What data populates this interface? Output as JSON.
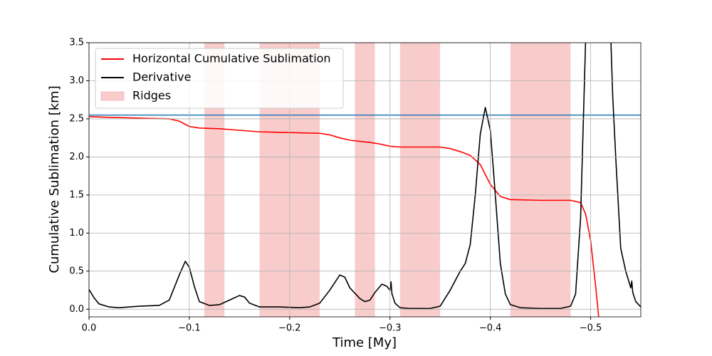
{
  "chart_data": {
    "type": "line",
    "xlabel": "Time [My]",
    "ylabel": "Cumulative Sublimation [km]",
    "xlim": [
      0,
      -0.55
    ],
    "ylim": [
      -0.1,
      3.5
    ],
    "xticks": [
      {
        "value": 0,
        "label": "0.0"
      },
      {
        "value": -0.1,
        "label": "−0.1"
      },
      {
        "value": -0.2,
        "label": "−0.2"
      },
      {
        "value": -0.3,
        "label": "−0.3"
      },
      {
        "value": -0.4,
        "label": "−0.4"
      },
      {
        "value": -0.5,
        "label": "−0.5"
      }
    ],
    "yticks": [
      {
        "value": 0,
        "label": "0.0"
      },
      0.5,
      {
        "value": 1,
        "label": "1.0"
      },
      1.5,
      {
        "value": 2,
        "label": "2.0"
      },
      2.5,
      {
        "value": 3,
        "label": "3.0"
      },
      3.5
    ],
    "grid": true,
    "legend": "upper left",
    "hline": {
      "value": 2.55,
      "color": "#1f77b4"
    },
    "spans": {
      "name": "Ridges",
      "color": "#f08080",
      "ranges": [
        [
          -0.115,
          -0.135
        ],
        [
          -0.17,
          -0.23
        ],
        [
          -0.265,
          -0.285
        ],
        [
          -0.31,
          -0.35
        ],
        [
          -0.42,
          -0.48
        ]
      ]
    },
    "series": [
      {
        "name": "Horizontal Cumulative Sublimation",
        "color": "#ff0000",
        "x": [
          0,
          -0.02,
          -0.05,
          -0.08,
          -0.09,
          -0.1,
          -0.11,
          -0.13,
          -0.15,
          -0.17,
          -0.2,
          -0.23,
          -0.24,
          -0.25,
          -0.26,
          -0.28,
          -0.29,
          -0.3,
          -0.31,
          -0.35,
          -0.36,
          -0.37,
          -0.38,
          -0.39,
          -0.4,
          -0.41,
          -0.42,
          -0.45,
          -0.48,
          -0.49,
          -0.495,
          -0.5,
          -0.505,
          -0.508
        ],
        "values": [
          2.53,
          2.52,
          2.51,
          2.5,
          2.47,
          2.4,
          2.38,
          2.37,
          2.35,
          2.33,
          2.32,
          2.31,
          2.29,
          2.25,
          2.22,
          2.19,
          2.17,
          2.14,
          2.13,
          2.13,
          2.11,
          2.07,
          2.02,
          1.9,
          1.64,
          1.48,
          1.44,
          1.43,
          1.43,
          1.4,
          1.25,
          0.9,
          0.3,
          -0.1
        ]
      },
      {
        "name": "Derivative",
        "color": "#000000",
        "x": [
          0,
          -0.005,
          -0.01,
          -0.02,
          -0.03,
          -0.05,
          -0.07,
          -0.08,
          -0.09,
          -0.096,
          -0.1,
          -0.105,
          -0.11,
          -0.12,
          -0.13,
          -0.14,
          -0.15,
          -0.155,
          -0.16,
          -0.17,
          -0.19,
          -0.21,
          -0.22,
          -0.23,
          -0.24,
          -0.25,
          -0.255,
          -0.26,
          -0.27,
          -0.275,
          -0.28,
          -0.285,
          -0.292,
          -0.297,
          -0.3,
          -0.301,
          -0.302,
          -0.305,
          -0.31,
          -0.32,
          -0.34,
          -0.35,
          -0.36,
          -0.37,
          -0.375,
          -0.38,
          -0.385,
          -0.39,
          -0.395,
          -0.4,
          -0.405,
          -0.41,
          -0.415,
          -0.42,
          -0.43,
          -0.45,
          -0.47,
          -0.48,
          -0.485,
          -0.49,
          -0.493,
          -0.496,
          -0.519,
          -0.522,
          -0.525,
          -0.53,
          -0.535,
          -0.54,
          -0.541,
          -0.542,
          -0.545,
          -0.55
        ],
        "values": [
          0.26,
          0.15,
          0.07,
          0.03,
          0.02,
          0.04,
          0.05,
          0.12,
          0.45,
          0.63,
          0.55,
          0.3,
          0.1,
          0.05,
          0.06,
          0.12,
          0.18,
          0.16,
          0.08,
          0.03,
          0.03,
          0.02,
          0.03,
          0.08,
          0.25,
          0.45,
          0.42,
          0.28,
          0.14,
          0.1,
          0.12,
          0.22,
          0.33,
          0.3,
          0.25,
          0.36,
          0.2,
          0.08,
          0.02,
          0.01,
          0.01,
          0.04,
          0.25,
          0.5,
          0.6,
          0.85,
          1.5,
          2.3,
          2.65,
          2.35,
          1.5,
          0.6,
          0.2,
          0.06,
          0.02,
          0.01,
          0.01,
          0.04,
          0.2,
          1.2,
          2.6,
          4.0,
          4.0,
          2.8,
          2.0,
          0.8,
          0.5,
          0.28,
          0.37,
          0.22,
          0.1,
          0.03
        ]
      }
    ]
  }
}
